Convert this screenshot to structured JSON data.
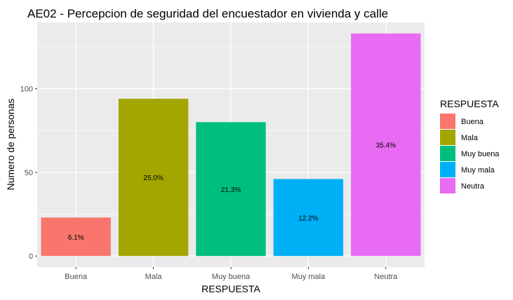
{
  "chart_data": {
    "type": "bar",
    "title": "AE02 - Percepcion de seguridad del encuestador en vivienda y calle",
    "xlabel": "RESPUESTA",
    "ylabel": "Numero de personas",
    "categories": [
      "Buena",
      "Mala",
      "Muy buena",
      "Muy mala",
      "Neutra"
    ],
    "values": [
      23,
      94,
      80,
      46,
      133
    ],
    "bar_labels": [
      "6.1%",
      "25.0%",
      "21.3%",
      "12.2%",
      "35.4%"
    ],
    "colors": [
      "#F8766D",
      "#A3A500",
      "#00BF7D",
      "#00B0F6",
      "#E76BF3"
    ],
    "yticks": [
      0,
      50,
      100
    ],
    "ylim": [
      -6.6,
      139.6
    ],
    "grid": true,
    "legend": {
      "title": "RESPUESTA",
      "position": "right",
      "entries": [
        "Buena",
        "Mala",
        "Muy buena",
        "Muy mala",
        "Neutra"
      ]
    },
    "panel_background": "#EBEBEB",
    "grid_color": "#FFFFFF"
  }
}
